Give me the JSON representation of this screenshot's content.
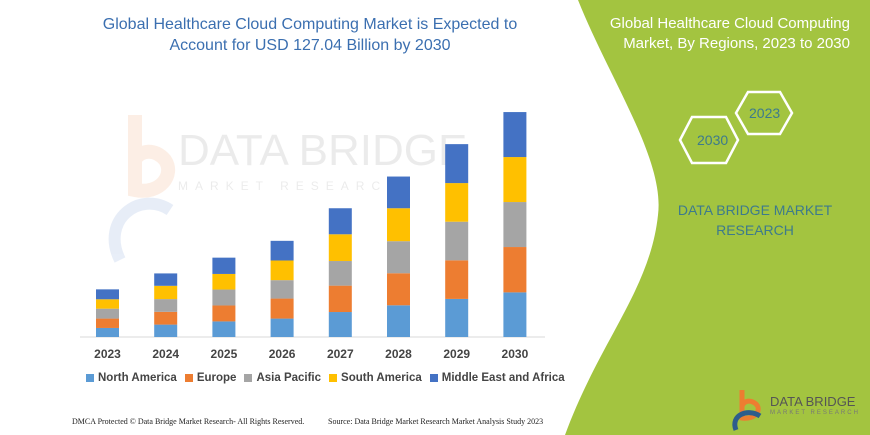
{
  "header": {
    "title": "Global Healthcare Cloud Computing Market is Expected to Account for USD 127.04 Billion by 2030"
  },
  "side_panel": {
    "title": "Global Healthcare Cloud Computing Market, By Regions, 2023 to 2030",
    "hex_left": "2030",
    "hex_right": "2023",
    "brand": "DATA BRIDGE MARKET RESEARCH",
    "color": "#a3c440"
  },
  "watermark": {
    "text": "DATA BRIDGE",
    "sub": "MARKET RESEARCH"
  },
  "footer": {
    "left": "DMCA Protected © Data Bridge Market Research-  All Rights Reserved.",
    "right": "Source: Data Bridge Market Research  Market Analysis Study 2023"
  },
  "logo": {
    "text": "DATA BRIDGE",
    "sub": "MARKET RESEARCH"
  },
  "chart_data": {
    "type": "bar",
    "stacked": true,
    "title": "Global Healthcare Cloud Computing Market is Expected to Account for USD 127.04 Billion by 2030",
    "xlabel": "",
    "ylabel": "",
    "grid": false,
    "legend_position": "bottom",
    "categories": [
      "2023",
      "2024",
      "2025",
      "2026",
      "2027",
      "2028",
      "2029",
      "2030"
    ],
    "series": [
      {
        "name": "North America",
        "color": "#5b9bd5",
        "values": [
          5.1,
          7.0,
          8.8,
          10.4,
          14.1,
          17.9,
          21.5,
          25.2
        ]
      },
      {
        "name": "Europe",
        "color": "#ed7d31",
        "values": [
          5.3,
          7.2,
          9.0,
          11.3,
          14.9,
          18.1,
          21.8,
          25.6
        ]
      },
      {
        "name": "Asia Pacific",
        "color": "#a5a5a5",
        "values": [
          5.6,
          7.2,
          9.0,
          10.4,
          13.9,
          18.1,
          21.8,
          25.4
        ]
      },
      {
        "name": "South America",
        "color": "#ffc000",
        "values": [
          5.3,
          7.5,
          8.8,
          11.1,
          15.1,
          18.6,
          21.8,
          25.4
        ]
      },
      {
        "name": "Middle East and Africa",
        "color": "#4472c4",
        "values": [
          5.6,
          7.0,
          9.2,
          11.1,
          14.7,
          17.9,
          22.0,
          25.4
        ]
      }
    ],
    "ylim": [
      0,
      127.04
    ]
  }
}
